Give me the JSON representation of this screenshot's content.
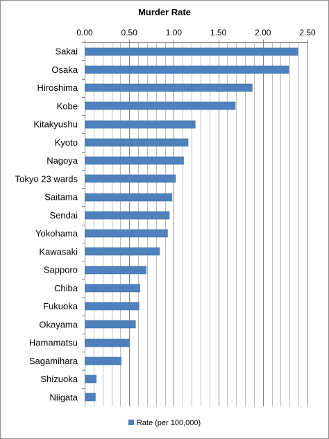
{
  "chart_data": {
    "type": "bar",
    "orientation": "horizontal",
    "title": "Murder Rate",
    "categories": [
      "Sakai",
      "Osaka",
      "Hiroshima",
      "Kobe",
      "Kitakyushu",
      "Kyoto",
      "Nagoya",
      "Tokyo 23 wards",
      "Saitama",
      "Sendai",
      "Yokohama",
      "Kawasaki",
      "Sapporo",
      "Chiba",
      "Fukuoka",
      "Okayama",
      "Hamamatsu",
      "Sagamihara",
      "Shizuoka",
      "Niigata"
    ],
    "series": [
      {
        "name": "Rate (per 100,000)",
        "values": [
          2.39,
          2.29,
          1.88,
          1.69,
          1.24,
          1.16,
          1.11,
          1.02,
          0.98,
          0.95,
          0.93,
          0.84,
          0.69,
          0.62,
          0.61,
          0.57,
          0.5,
          0.41,
          0.13,
          0.12
        ]
      }
    ],
    "xlim": [
      0,
      2.5
    ],
    "x_ticks": [
      "0.00",
      "0.50",
      "1.00",
      "1.50",
      "2.00",
      "2.50"
    ],
    "x_axis_position": "top",
    "grid": "vertical",
    "legend_position": "bottom",
    "bar_color": "#4f81bd"
  }
}
